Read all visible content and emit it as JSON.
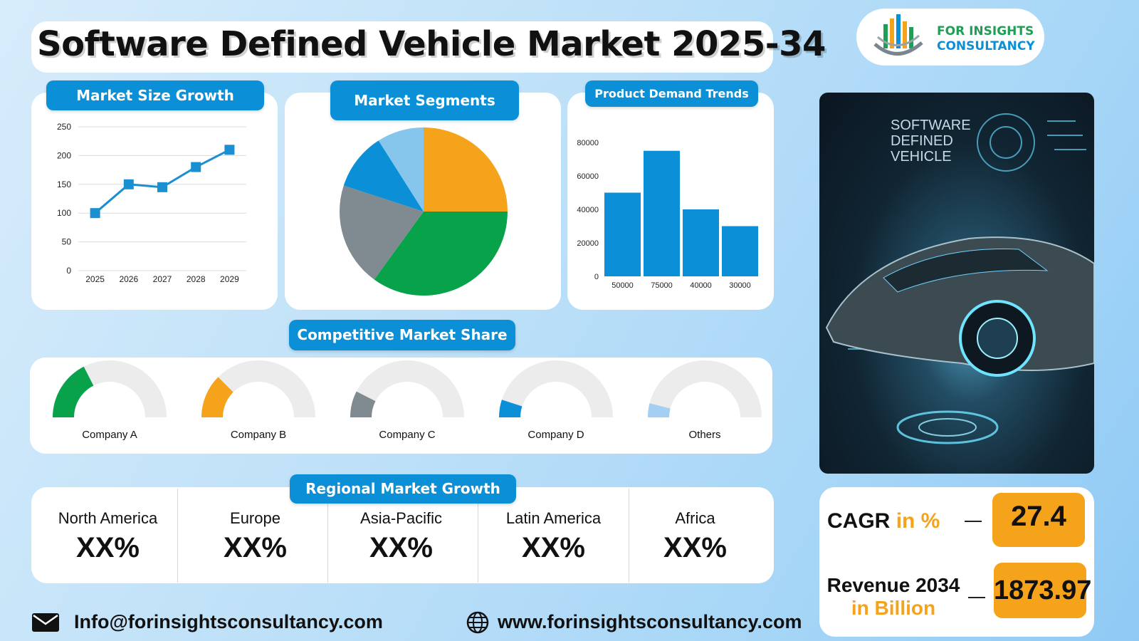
{
  "title": "Software Defined Vehicle Market 2025-34",
  "logo": {
    "line1": "FOR INSIGHTS",
    "line2": "CONSULTANCY"
  },
  "panels": {
    "market_size": "Market Size Growth",
    "segments": "Market Segments",
    "demand": "Product Demand Trends",
    "competitive": "Competitive Market Share",
    "regional": "Regional Market Growth"
  },
  "hero_image": {
    "text_lines": [
      "SOFTWARE",
      "DEFINED",
      "VEHICLE"
    ]
  },
  "chart_data": [
    {
      "type": "line",
      "title": "Market Size Growth",
      "x": [
        "2025",
        "2026",
        "2027",
        "2028",
        "2029"
      ],
      "values": [
        100,
        150,
        145,
        180,
        210
      ],
      "ylim": [
        0,
        250
      ],
      "yticks": [
        0,
        50,
        100,
        150,
        200,
        250
      ],
      "grid": true,
      "color": "#1a8fd2"
    },
    {
      "type": "pie",
      "title": "Market Segments",
      "values": [
        25,
        35,
        20,
        11,
        9
      ],
      "colors": [
        "#f5a31a",
        "#08a24a",
        "#808a91",
        "#0b8fd6",
        "#86c5ec"
      ]
    },
    {
      "type": "bar",
      "title": "Product Demand Trends",
      "categories": [
        "50000",
        "75000",
        "40000",
        "30000"
      ],
      "values": [
        50000,
        75000,
        40000,
        30000
      ],
      "ylim": [
        0,
        80000
      ],
      "yticks": [
        0,
        20000,
        40000,
        60000,
        80000
      ],
      "color": "#0b8fd6"
    },
    {
      "type": "gauge",
      "title": "Competitive Market Share",
      "items": [
        {
          "name": "Company A",
          "share": 0.35,
          "color": "#08a24a"
        },
        {
          "name": "Company B",
          "share": 0.25,
          "color": "#f5a31a"
        },
        {
          "name": "Company C",
          "share": 0.15,
          "color": "#808a91"
        },
        {
          "name": "Company D",
          "share": 0.1,
          "color": "#0b8fd6"
        },
        {
          "name": "Others",
          "share": 0.08,
          "color": "#a5cff2"
        }
      ]
    }
  ],
  "regions": [
    {
      "name": "North America",
      "value": "XX%"
    },
    {
      "name": "Europe",
      "value": "XX%"
    },
    {
      "name": "Asia-Pacific",
      "value": "XX%"
    },
    {
      "name": "Latin America",
      "value": "XX%"
    },
    {
      "name": "Africa",
      "value": "XX%"
    }
  ],
  "metrics": {
    "cagr_label": "CAGR",
    "cagr_unit": "in %",
    "cagr_value": "27.4",
    "revenue_label": "Revenue 2034",
    "revenue_unit": "in Billion",
    "revenue_value": "1873.97"
  },
  "footer": {
    "email": "Info@forinsightsconsultancy.com",
    "website": "www.forinsightsconsultancy.com"
  },
  "colors": {
    "accent": "#0b8fd6",
    "highlight": "#f5a31a"
  }
}
